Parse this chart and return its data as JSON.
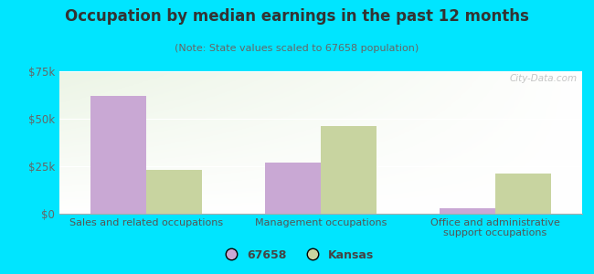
{
  "title": "Occupation by median earnings in the past 12 months",
  "subtitle": "(Note: State values scaled to 67658 population)",
  "categories": [
    "Sales and related occupations",
    "Management occupations",
    "Office and administrative\nsupport occupations"
  ],
  "values_67658": [
    62000,
    27000,
    3000
  ],
  "values_kansas": [
    23000,
    46000,
    21000
  ],
  "color_67658": "#c9a8d4",
  "color_kansas": "#c8d4a0",
  "ylim": [
    0,
    75000
  ],
  "yticks": [
    0,
    25000,
    50000,
    75000
  ],
  "ytick_labels": [
    "$0",
    "$25k",
    "$50k",
    "$75k"
  ],
  "background_outer": "#00e5ff",
  "bar_width": 0.32,
  "legend_labels": [
    "67658",
    "Kansas"
  ],
  "watermark": "City-Data.com"
}
